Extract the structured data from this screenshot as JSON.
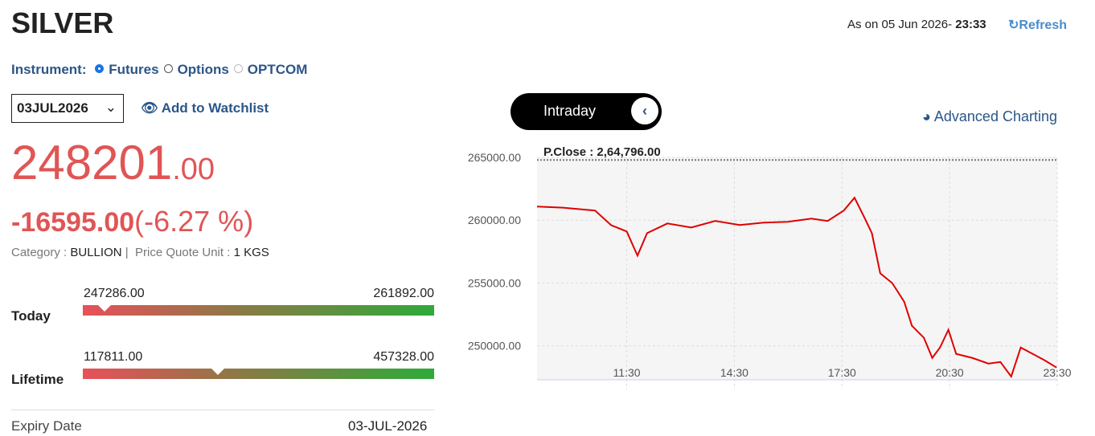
{
  "header": {
    "title": "SILVER",
    "as_on": "As on 05 Jun 2026-",
    "time": "23:33",
    "refresh": "Refresh"
  },
  "instrument": {
    "label": "Instrument:",
    "options": [
      "Futures",
      "Options",
      "OPTCOM"
    ],
    "selected": 0
  },
  "expiry_select": "03JUL2026",
  "watchlist": "Add to Watchlist",
  "quote": {
    "price_int": "248201",
    "price_dec": ".00",
    "change": "-16595.00",
    "change_pct": "(-6.27 %)",
    "category_label": "Category :",
    "category": "BULLION",
    "separator": "|",
    "unit_label": "Price Quote Unit :",
    "unit": "1 KGS"
  },
  "ranges": [
    {
      "label": "Today",
      "low": "247286.00",
      "high": "261892.00"
    },
    {
      "label": "Lifetime",
      "low": "117811.00",
      "high": "457328.00"
    }
  ],
  "expiry": {
    "label": "Expiry Date",
    "value": "03-JUL-2026"
  },
  "toggle": "Intraday",
  "advanced": "Advanced Charting",
  "chart_data": {
    "type": "line",
    "reference": {
      "value": 264796,
      "label": "P.Close : 2,64,796.00"
    },
    "x": [
      540,
      583,
      637,
      664,
      690,
      708,
      724,
      758,
      798,
      838,
      879,
      919,
      959,
      999,
      1026,
      1053,
      1071,
      1087,
      1100,
      1114,
      1134,
      1154,
      1167,
      1187,
      1201,
      1214,
      1228,
      1241,
      1268,
      1295,
      1315,
      1333,
      1349,
      1369,
      1389,
      1409
    ],
    "series": [
      {
        "name": "SILVER",
        "color": "#e00000",
        "values": [
          261090,
          261000,
          260770,
          259600,
          259100,
          257180,
          258970,
          259740,
          259420,
          259940,
          259620,
          259810,
          259870,
          260130,
          259940,
          260770,
          261790,
          260260,
          258970,
          255770,
          255000,
          253520,
          251600,
          250640,
          249040,
          249870,
          251280,
          249360,
          249040,
          248590,
          248720,
          247560,
          249870,
          249360,
          248850,
          248270
        ]
      }
    ],
    "xlim": [
      540,
      1410
    ],
    "xticks": [
      {
        "value": 690,
        "label": "11:30"
      },
      {
        "value": 870,
        "label": "14:30"
      },
      {
        "value": 1050,
        "label": "17:30"
      },
      {
        "value": 1230,
        "label": "20:30"
      },
      {
        "value": 1410,
        "label": "23:30"
      }
    ],
    "ylim": [
      247300,
      265000
    ],
    "yticks": [
      {
        "value": 250000,
        "label": "250000.00"
      },
      {
        "value": 255000,
        "label": "255000.00"
      },
      {
        "value": 260000,
        "label": "260000.00"
      },
      {
        "value": 265000,
        "label": "265000.00"
      }
    ],
    "grid": true
  }
}
